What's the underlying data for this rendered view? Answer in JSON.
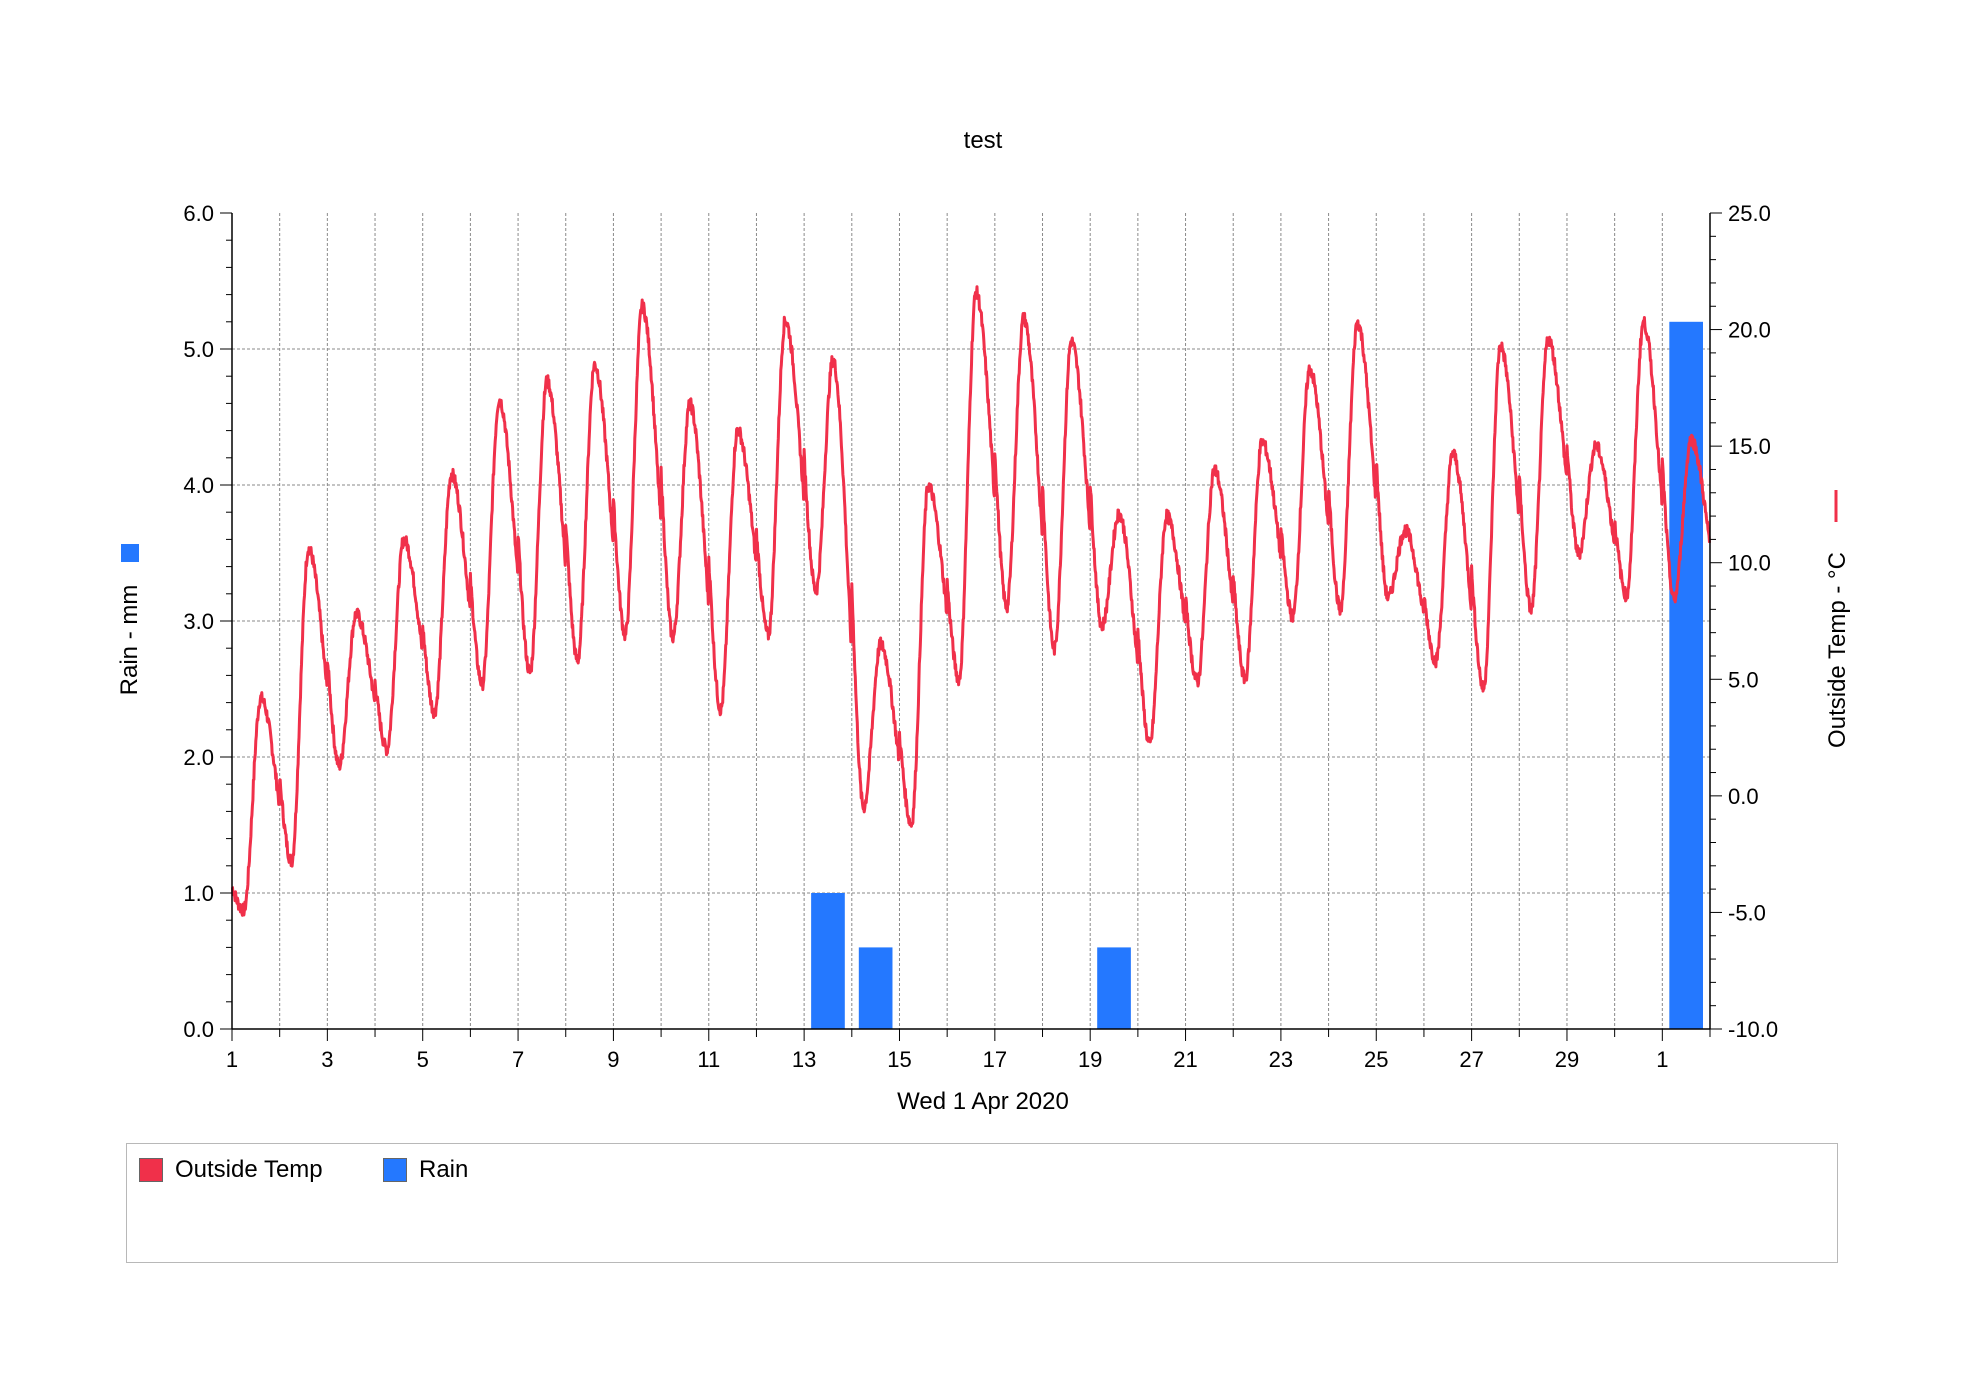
{
  "chart_data": {
    "type": "line",
    "title": "test",
    "xlabel": "Wed 1 Apr 2020",
    "x_tick_labels": [
      "1",
      "3",
      "5",
      "7",
      "9",
      "11",
      "13",
      "15",
      "17",
      "19",
      "21",
      "23",
      "25",
      "27",
      "29",
      "1"
    ],
    "xlim_days": [
      0,
      31
    ],
    "y_left": {
      "label": "Rain - mm",
      "lim": [
        0,
        6
      ],
      "ticks": [
        "0.0",
        "1.0",
        "2.0",
        "3.0",
        "4.0",
        "5.0",
        "6.0"
      ]
    },
    "y_right": {
      "label": "Outside Temp - °C",
      "lim": [
        -10,
        25
      ],
      "ticks": [
        "-10.0",
        "-5.0",
        "0.0",
        "5.0",
        "10.0",
        "15.0",
        "20.0",
        "25.0"
      ]
    },
    "grid": true,
    "legend_position": "bottom",
    "series": [
      {
        "name": "Outside Temp",
        "axis": "right",
        "type": "line",
        "color": "#f0304a",
        "daily": [
          {
            "day": 1,
            "min": -4.9,
            "max": 4.2
          },
          {
            "day": 2,
            "min": -2.8,
            "max": 10.6
          },
          {
            "day": 3,
            "min": 1.3,
            "max": 7.8
          },
          {
            "day": 4,
            "min": 2.0,
            "max": 11.0
          },
          {
            "day": 5,
            "min": 3.6,
            "max": 13.8
          },
          {
            "day": 6,
            "min": 4.8,
            "max": 17.0
          },
          {
            "day": 7,
            "min": 5.3,
            "max": 17.8
          },
          {
            "day": 8,
            "min": 5.8,
            "max": 18.5
          },
          {
            "day": 9,
            "min": 6.9,
            "max": 21.0
          },
          {
            "day": 10,
            "min": 6.8,
            "max": 16.8
          },
          {
            "day": 11,
            "min": 3.7,
            "max": 15.7
          },
          {
            "day": 12,
            "min": 6.9,
            "max": 20.4
          },
          {
            "day": 13,
            "min": 8.8,
            "max": 18.7
          },
          {
            "day": 14,
            "min": -0.5,
            "max": 6.5
          },
          {
            "day": 15,
            "min": -1.2,
            "max": 13.3
          },
          {
            "day": 16,
            "min": 5.0,
            "max": 21.6
          },
          {
            "day": 17,
            "min": 8.1,
            "max": 20.5
          },
          {
            "day": 18,
            "min": 6.3,
            "max": 19.5
          },
          {
            "day": 19,
            "min": 7.3,
            "max": 12.1
          },
          {
            "day": 20,
            "min": 2.2,
            "max": 12.0
          },
          {
            "day": 21,
            "min": 4.9,
            "max": 14.0
          },
          {
            "day": 22,
            "min": 5.0,
            "max": 15.2
          },
          {
            "day": 23,
            "min": 7.7,
            "max": 18.3
          },
          {
            "day": 24,
            "min": 8.0,
            "max": 20.3
          },
          {
            "day": 25,
            "min": 8.5,
            "max": 11.4
          },
          {
            "day": 26,
            "min": 5.8,
            "max": 14.7
          },
          {
            "day": 27,
            "min": 4.6,
            "max": 19.3
          },
          {
            "day": 28,
            "min": 8.0,
            "max": 19.6
          },
          {
            "day": 29,
            "min": 10.4,
            "max": 15.0
          },
          {
            "day": 30,
            "min": 8.6,
            "max": 20.3
          },
          {
            "day": 31,
            "min": 8.4,
            "max": 15.3
          }
        ]
      },
      {
        "name": "Rain",
        "axis": "left",
        "type": "bar",
        "color": "#2478ff",
        "bars": [
          {
            "day": 13,
            "value": 1.0
          },
          {
            "day": 14,
            "value": 0.6
          },
          {
            "day": 19,
            "value": 0.6
          },
          {
            "day": 31,
            "value": 5.2
          }
        ]
      }
    ]
  },
  "legend": {
    "items": [
      {
        "label": "Outside Temp",
        "color": "#f0304a"
      },
      {
        "label": "Rain",
        "color": "#2478ff"
      }
    ]
  },
  "axis_markers": {
    "rain_color": "#2478ff",
    "temp_color": "#f0304a"
  }
}
